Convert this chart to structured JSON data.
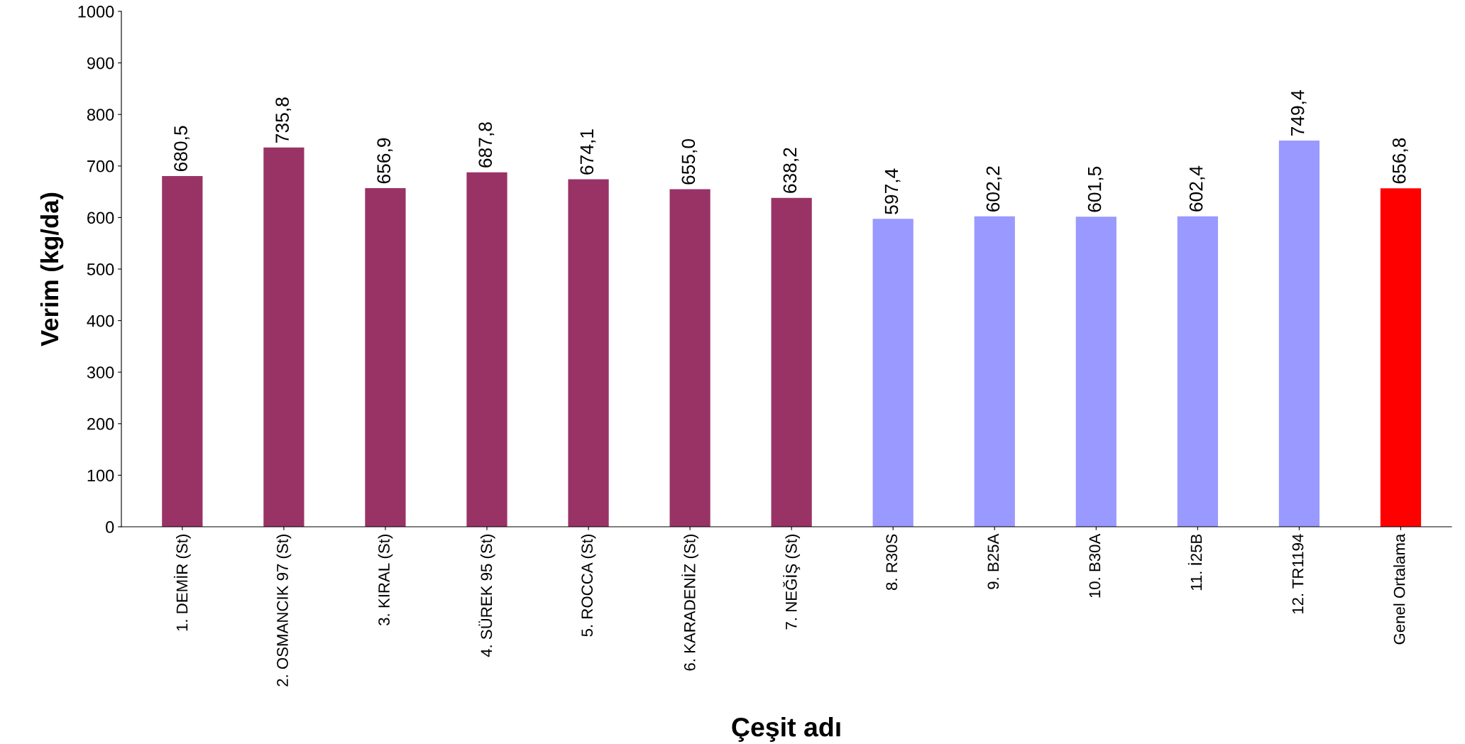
{
  "chart_data": {
    "type": "bar",
    "xlabel": "Çeşit adı",
    "ylabel": "Verim (kg/da)",
    "categories": [
      "1. DEMİR (St)",
      "2. OSMANCIK 97 (St)",
      "3. KIRAL (St)",
      "4. SÜREK 95 (St)",
      "5. ROCCA (St)",
      "6. KARADENİZ (St)",
      "7. NEĞİŞ (St)",
      "8. R30S",
      "9. B25A",
      "10. B30A",
      "11. İ25B",
      "12. TR1194",
      "Genel Ortalama"
    ],
    "values": [
      680.5,
      735.8,
      656.9,
      687.8,
      674.1,
      655.0,
      638.2,
      597.4,
      602.2,
      601.5,
      602.4,
      749.4,
      656.8
    ],
    "value_labels": [
      "680,5",
      "735,8",
      "656,9",
      "687,8",
      "674,1",
      "655,0",
      "638,2",
      "597,4",
      "602,2",
      "601,5",
      "602,4",
      "749,4",
      "656,8"
    ],
    "colors": [
      "#993366",
      "#993366",
      "#993366",
      "#993366",
      "#993366",
      "#993366",
      "#993366",
      "#9999ff",
      "#9999ff",
      "#9999ff",
      "#9999ff",
      "#9999ff",
      "#ff0000"
    ],
    "ylim": [
      0,
      1000
    ],
    "yticks": [
      0,
      100,
      200,
      300,
      400,
      500,
      600,
      700,
      800,
      900,
      1000
    ],
    "grid": false
  }
}
